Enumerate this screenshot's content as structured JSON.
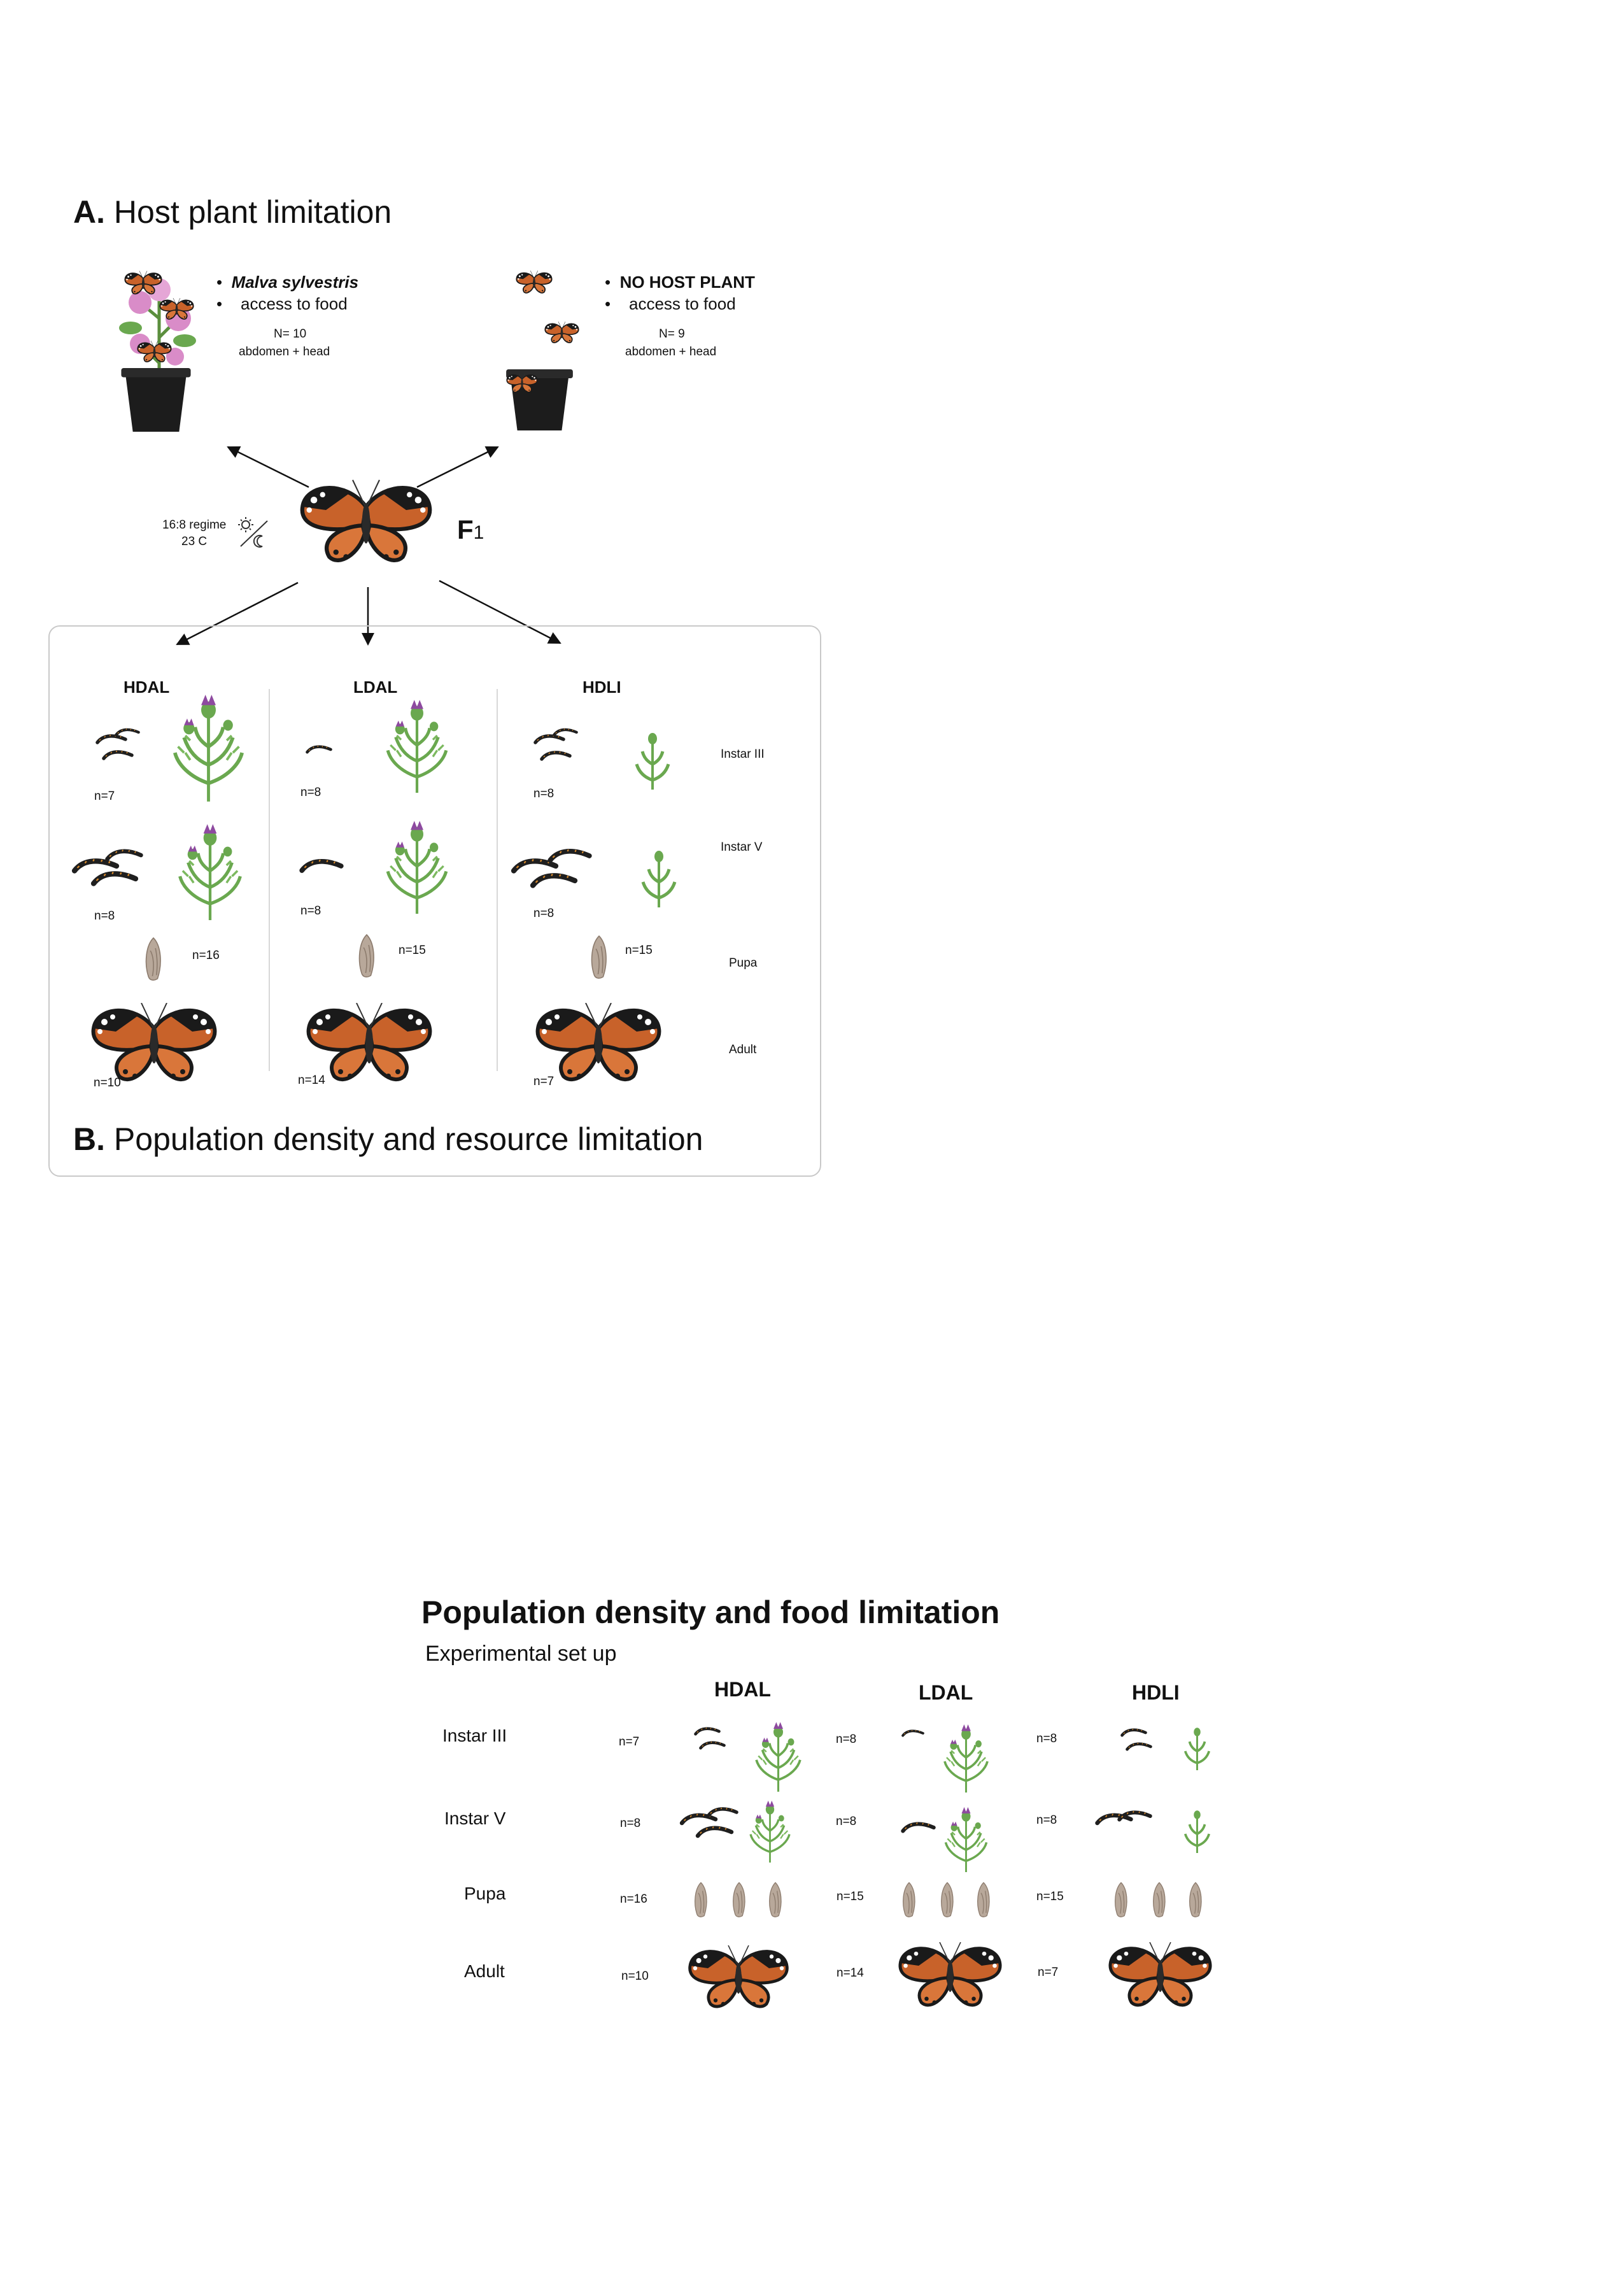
{
  "panelA": {
    "letter": "A.",
    "title": "Host plant limitation",
    "left": {
      "item1": "Malva sylvestris",
      "item2": "access to food",
      "n": "N= 10",
      "sample": "abdomen + head"
    },
    "right": {
      "item1": "NO HOST PLANT",
      "item2": "access to food",
      "n": "N= 9",
      "sample": "abdomen + head"
    }
  },
  "center": {
    "regime": "16:8 regime",
    "temp": "23 C",
    "generation": "F",
    "generation_sub": "1"
  },
  "panelB": {
    "letter": "B.",
    "title": "Population density and resource limitation",
    "groups": [
      "HDAL",
      "LDAL",
      "HDLI"
    ],
    "stages": [
      "Instar III",
      "Instar V",
      "Pupa",
      "Adult"
    ],
    "counts": {
      "HDAL": [
        "n=7",
        "n=8",
        "n=16",
        "n=10"
      ],
      "LDAL": [
        "n=8",
        "n=8",
        "n=15",
        "n=14"
      ],
      "HDLI": [
        "n=8",
        "n=8",
        "n=15",
        "n=7"
      ]
    }
  },
  "panelC": {
    "title": "Population density and food limitation",
    "subtitle": "Experimental set up",
    "groups": [
      "HDAL",
      "LDAL",
      "HDLI"
    ],
    "stages": [
      "Instar III",
      "Instar V",
      "Pupa",
      "Adult"
    ],
    "counts": {
      "HDAL": [
        "n=7",
        "n=8",
        "n=16",
        "n=10"
      ],
      "LDAL": [
        "n=8",
        "n=8",
        "n=15",
        "n=14"
      ],
      "HDLI": [
        "n=8",
        "n=8",
        "n=15",
        "n=7"
      ]
    }
  },
  "colors": {
    "butterfly_orange": "#c8622a",
    "butterfly_black": "#1a1a1a",
    "plant_green": "#6aa84f",
    "thistle_purple": "#8e4aa0",
    "mallow_pink": "#d98cc8",
    "pupa_brown": "#b8a89a",
    "pot_black": "#1c1c1c"
  },
  "icons": [
    "butterfly-icon",
    "caterpillar-icon",
    "thistle-plant-icon",
    "mallow-plant-icon",
    "pot-icon",
    "pupa-icon",
    "sun-moon-icon"
  ]
}
